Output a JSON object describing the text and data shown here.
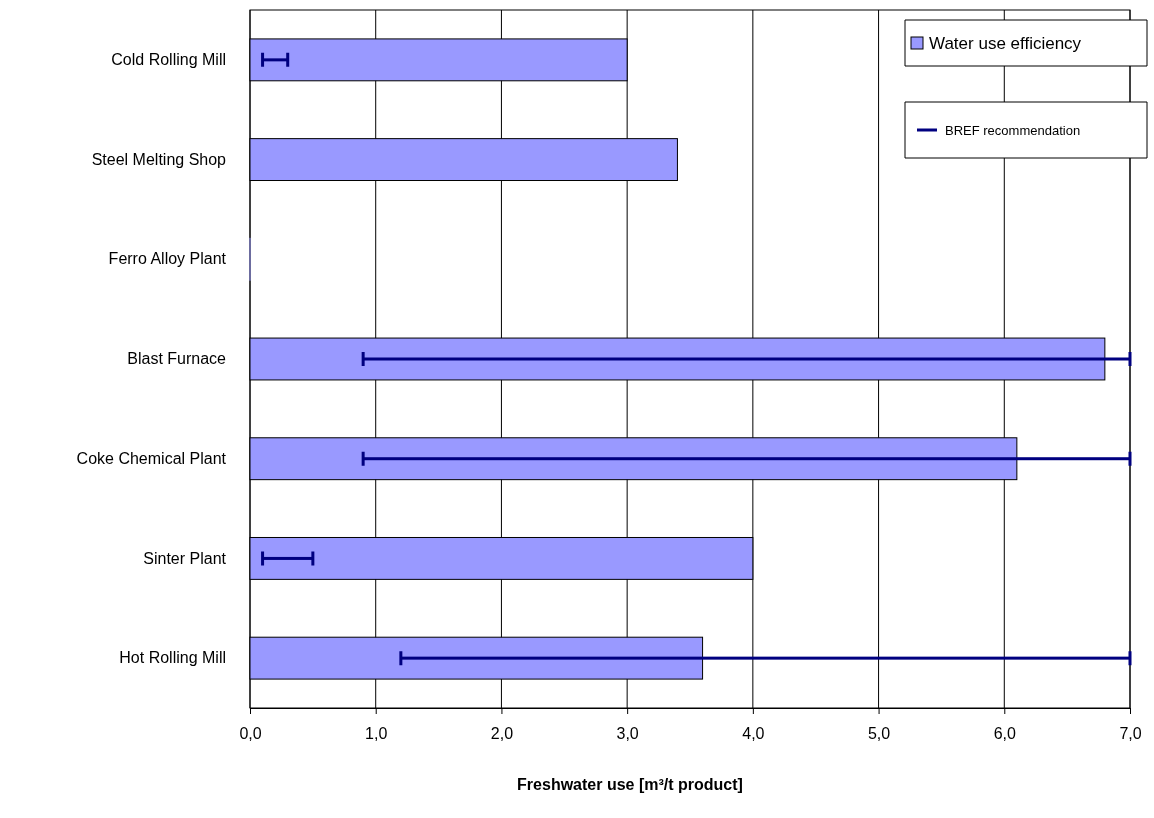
{
  "chart_data": {
    "type": "bar",
    "orientation": "horizontal",
    "xlabel": "Freshwater use [m³/t product]",
    "categories": [
      "Cold Rolling Mill",
      "Steel Melting Shop",
      "Ferro Alloy Plant",
      "Blast Furnace",
      "Coke Chemical Plant",
      "Sinter Plant",
      "Hot Rolling Mill"
    ],
    "series": [
      {
        "name": "Water use efficiency",
        "color": "#9999ff",
        "values": [
          3.0,
          3.4,
          0,
          6.8,
          6.1,
          4.0,
          3.6
        ]
      },
      {
        "name": "BREF recommendation",
        "color": "#000080",
        "type": "bar",
        "base": [
          0.1,
          null,
          null,
          0.9,
          0.9,
          0.1,
          1.2
        ],
        "values": [
          0.2,
          null,
          null,
          6.1,
          6.1,
          0.4,
          5.8
        ]
      }
    ],
    "xlim": [
      0,
      7
    ],
    "xticks": [
      {
        "value": 0,
        "label": "0,0"
      },
      {
        "value": 1,
        "label": "1,0"
      },
      {
        "value": 2,
        "label": "2,0"
      },
      {
        "value": 3,
        "label": "3,0"
      },
      {
        "value": 4,
        "label": "4,0"
      },
      {
        "value": 5,
        "label": "5,0"
      },
      {
        "value": 6,
        "label": "6,0"
      },
      {
        "value": 7,
        "label": "7,0"
      }
    ],
    "grid": "x",
    "legend": "top right"
  }
}
